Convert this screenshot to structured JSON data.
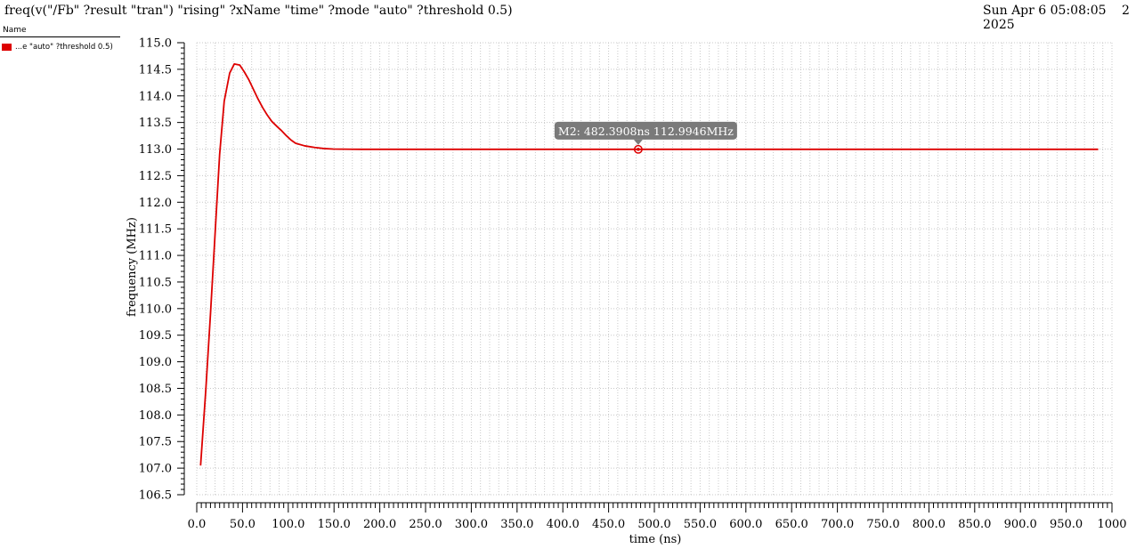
{
  "window": {
    "title": "freq(v(\"/Fb\" ?result \"tran\") \"rising\" ?xName \"time\" ?mode \"auto\" ?threshold 0.5)",
    "date": "Sun Apr 6 05:08:05",
    "date_line2": "2025",
    "page": "2"
  },
  "legend": {
    "header": "Name",
    "items": [
      {
        "label": "...e \"auto\" ?threshold 0.5)",
        "color": "#dd0000"
      }
    ]
  },
  "chart_data": {
    "type": "line",
    "title": "freq(v(\"/Fb\" ?result \"tran\") \"rising\" ?xName \"time\" ?mode \"auto\" ?threshold 0.5)",
    "xlabel": "time (ns)",
    "ylabel": "frequency (MHz)",
    "xlim": [
      0,
      1000
    ],
    "ylim": [
      106.5,
      115.0
    ],
    "grid": true,
    "xticks": [
      0.0,
      50.0,
      100.0,
      150.0,
      200.0,
      250.0,
      300.0,
      350.0,
      400.0,
      450.0,
      500.0,
      550.0,
      600.0,
      650.0,
      700.0,
      750.0,
      800.0,
      850.0,
      900.0,
      950.0,
      1000
    ],
    "xtick_labels": [
      "0.0",
      "50.0",
      "100.0",
      "150.0",
      "200.0",
      "250.0",
      "300.0",
      "350.0",
      "400.0",
      "450.0",
      "500.0",
      "550.0",
      "600.0",
      "650.0",
      "700.0",
      "750.0",
      "800.0",
      "850.0",
      "900.0",
      "950.0",
      "1000"
    ],
    "yticks": [
      106.5,
      107.0,
      107.5,
      108.0,
      108.5,
      109.0,
      109.5,
      110.0,
      110.5,
      111.0,
      111.5,
      112.0,
      112.5,
      113.0,
      113.5,
      114.0,
      114.5,
      115.0
    ],
    "ytick_labels": [
      "106.5",
      "107.0",
      "107.5",
      "108.0",
      "108.5",
      "109.0",
      "109.5",
      "110.0",
      "110.5",
      "111.0",
      "111.5",
      "112.0",
      "112.5",
      "113.0",
      "113.5",
      "114.0",
      "114.5",
      "115.0"
    ],
    "series": [
      {
        "name": "...e \"auto\" ?threshold 0.5)",
        "color": "#dd0000",
        "x": [
          4.2,
          10,
          15,
          20,
          25,
          30,
          36,
          41,
          47,
          52,
          57,
          62,
          67,
          72,
          77,
          82,
          88,
          93,
          98,
          103,
          108,
          118,
          129,
          139,
          149,
          159,
          170,
          180,
          190,
          200,
          211,
          221,
          232,
          242,
          252,
          262,
          272,
          282,
          300,
          350,
          400,
          450,
          500,
          550,
          600,
          650,
          700,
          750,
          800,
          850,
          900,
          950,
          985
        ],
        "y": [
          107.05,
          108.5,
          109.9,
          111.4,
          112.9,
          113.9,
          114.43,
          114.6,
          114.58,
          114.45,
          114.3,
          114.12,
          113.94,
          113.78,
          113.64,
          113.52,
          113.42,
          113.34,
          113.25,
          113.17,
          113.11,
          113.06,
          113.03,
          113.01,
          113.0,
          112.998,
          112.996,
          112.995,
          112.995,
          112.995,
          112.995,
          112.995,
          112.995,
          112.995,
          112.995,
          112.995,
          112.995,
          112.995,
          112.995,
          112.995,
          112.995,
          112.995,
          112.995,
          112.995,
          112.995,
          112.995,
          112.995,
          112.995,
          112.995,
          112.995,
          112.995,
          112.995,
          112.995
        ]
      }
    ],
    "markers": [
      {
        "label": "M2: 482.3908ns 112.9946MHz",
        "x": 482.3908,
        "y": 112.9946
      }
    ]
  }
}
